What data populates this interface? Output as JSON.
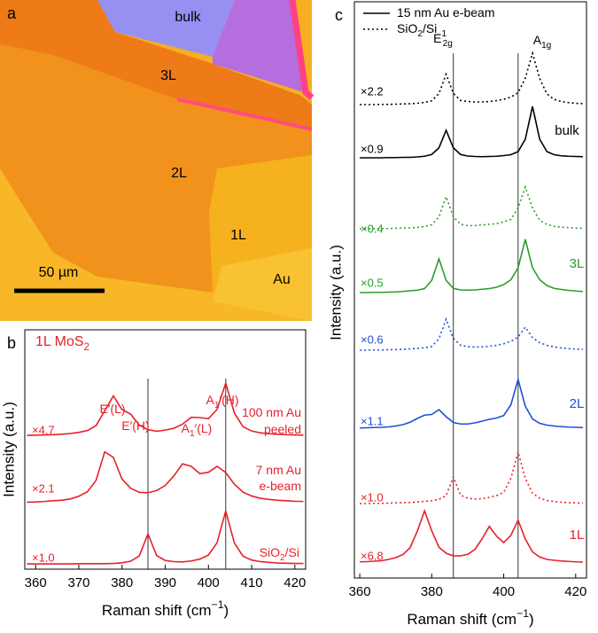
{
  "panel_a": {
    "label": "a",
    "regions": [
      "bulk",
      "3L",
      "2L",
      "1L",
      "Au"
    ],
    "scale_bar": "50 µm"
  },
  "chart_data": [
    {
      "type": "line",
      "panel": "b",
      "title": [
        {
          "t": "1L MoS"
        },
        {
          "t": "2",
          "pos": "sub"
        }
      ],
      "xlabel": [
        {
          "t": "Raman shift (cm"
        },
        {
          "t": "−1",
          "pos": "sup"
        },
        {
          "t": ")"
        }
      ],
      "ylabel": "Intensity (a.u.)",
      "xlim": [
        357.5,
        422.5
      ],
      "xticks": [
        360,
        370,
        380,
        390,
        400,
        410,
        420
      ],
      "ylim": [
        0,
        10.5
      ],
      "vlines": [
        386,
        404
      ],
      "x": [
        358,
        360,
        362,
        364,
        366,
        368,
        370,
        372,
        374,
        376,
        378,
        380,
        382,
        384,
        386,
        388,
        390,
        392,
        394,
        396,
        398,
        400,
        402,
        404,
        406,
        408,
        410,
        412,
        414,
        416,
        418,
        420,
        422
      ],
      "series": [
        {
          "color": "#e8202a",
          "dash": false,
          "scale": "×4.7",
          "label_lines": [
            [
              {
                "t": "100 nm Au"
              }
            ],
            [
              {
                "t": "peeled"
              }
            ]
          ],
          "values": [
            5.87,
            5.88,
            5.89,
            5.9,
            5.92,
            5.95,
            6.0,
            6.08,
            6.3,
            6.95,
            7.6,
            7.0,
            6.8,
            6.32,
            6.12,
            6.05,
            6.1,
            6.18,
            6.36,
            6.66,
            6.65,
            6.6,
            7.01,
            8.16,
            6.85,
            6.25,
            6.06,
            5.98,
            5.94,
            5.92,
            5.9,
            5.89,
            5.88
          ]
        },
        {
          "color": "#e8202a",
          "dash": false,
          "scale": "×2.1",
          "label_lines": [
            [
              {
                "t": "7 nm Au"
              }
            ],
            [
              {
                "t": "e-beam"
              }
            ]
          ],
          "values": [
            2.94,
            2.95,
            2.97,
            3.0,
            3.02,
            3.08,
            3.2,
            3.4,
            3.9,
            5.15,
            4.9,
            3.95,
            3.55,
            3.37,
            3.35,
            3.45,
            3.67,
            4.09,
            4.62,
            4.51,
            4.19,
            4.25,
            4.51,
            4.24,
            3.73,
            3.38,
            3.21,
            3.11,
            3.06,
            3.02,
            3.0,
            2.98,
            2.97
          ]
        },
        {
          "color": "#e8202a",
          "dash": false,
          "scale": "×1.0",
          "label_lines": [
            [
              {
                "t": "SiO"
              },
              {
                "t": "2",
                "pos": "sub"
              },
              {
                "t": "/Si"
              }
            ]
          ],
          "values": [
            0.23,
            0.23,
            0.23,
            0.23,
            0.23,
            0.23,
            0.24,
            0.24,
            0.24,
            0.24,
            0.25,
            0.28,
            0.35,
            0.58,
            1.55,
            0.6,
            0.38,
            0.33,
            0.32,
            0.36,
            0.44,
            0.62,
            1.16,
            2.55,
            1.15,
            0.57,
            0.4,
            0.33,
            0.3,
            0.27,
            0.26,
            0.25,
            0.25
          ]
        }
      ],
      "peak_labels": [
        [
          {
            "t": "E′(L)"
          }
        ],
        [
          {
            "t": "E′(H)"
          }
        ],
        [
          {
            "t": "A"
          },
          {
            "t": "1",
            "pos": "sub"
          },
          {
            "t": "′(L)"
          }
        ],
        [
          {
            "t": "A"
          },
          {
            "t": "1",
            "pos": "sub"
          },
          {
            "t": "′(H)"
          }
        ]
      ]
    },
    {
      "type": "line",
      "panel": "c",
      "xlabel": [
        {
          "t": "Raman shift (cm"
        },
        {
          "t": "−1",
          "pos": "sup"
        },
        {
          "t": ")"
        }
      ],
      "ylabel": "Intensity (a.u.)",
      "xlim": [
        358.5,
        423
      ],
      "xticks": [
        360,
        380,
        400,
        420
      ],
      "ylim": [
        0,
        26
      ],
      "vlines": [
        386,
        404
      ],
      "legend": [
        {
          "parts": [
            {
              "t": "15 nm Au e-beam"
            }
          ],
          "dash": false,
          "color": "#000000"
        },
        {
          "parts": [
            {
              "t": "SiO"
            },
            {
              "t": "2",
              "pos": "sub"
            },
            {
              "t": "/Si"
            }
          ],
          "dash": true,
          "color": "#000000"
        }
      ],
      "x": [
        360,
        362,
        364,
        366,
        368,
        370,
        372,
        374,
        376,
        378,
        380,
        382,
        384,
        386,
        388,
        390,
        392,
        394,
        396,
        398,
        400,
        402,
        404,
        406,
        408,
        410,
        412,
        414,
        416,
        418,
        420,
        422
      ],
      "series": [
        {
          "color": "#000000",
          "dash": true,
          "scale": "×2.2",
          "values": [
            21.36,
            21.36,
            21.36,
            21.37,
            21.37,
            21.38,
            21.39,
            21.4,
            21.42,
            21.46,
            21.53,
            21.86,
            22.73,
            21.87,
            21.55,
            21.5,
            21.48,
            21.48,
            21.5,
            21.54,
            21.6,
            21.7,
            21.9,
            22.55,
            23.68,
            22.54,
            21.84,
            21.6,
            21.5,
            21.45,
            21.42,
            21.4
          ]
        },
        {
          "color": "#000000",
          "dash": false,
          "scale": "×0.9",
          "values": [
            18.96,
            18.96,
            18.96,
            18.96,
            18.97,
            18.97,
            18.98,
            18.98,
            19.0,
            19.03,
            19.11,
            19.41,
            20.2,
            19.41,
            19.11,
            19.04,
            19.02,
            19.01,
            19.02,
            19.03,
            19.06,
            19.1,
            19.24,
            19.8,
            21.28,
            19.8,
            19.24,
            19.1,
            19.05,
            19.03,
            19.02,
            19.01
          ]
        },
        {
          "color": "#2a9d2a",
          "dash": true,
          "scale": "×0.4",
          "values": [
            15.76,
            15.76,
            15.76,
            15.77,
            15.77,
            15.78,
            15.79,
            15.8,
            15.82,
            15.86,
            15.94,
            16.29,
            17.21,
            16.3,
            15.96,
            15.9,
            15.9,
            15.93,
            15.96,
            15.99,
            16.07,
            16.18,
            16.7,
            17.64,
            16.7,
            16.14,
            15.95,
            15.87,
            15.83,
            15.81,
            15.79,
            15.78
          ]
        },
        {
          "color": "#2a9d2a",
          "dash": false,
          "scale": "×0.5",
          "values": [
            12.88,
            12.88,
            12.89,
            12.89,
            12.9,
            12.91,
            12.93,
            12.96,
            12.99,
            13.06,
            13.43,
            14.4,
            13.43,
            13.07,
            13.0,
            12.99,
            13.0,
            13.03,
            13.06,
            13.12,
            13.24,
            13.46,
            14.0,
            15.28,
            14.0,
            13.46,
            13.2,
            13.07,
            13.02,
            12.98,
            12.95,
            12.93
          ]
        },
        {
          "color": "#1f4fd6",
          "dash": true,
          "scale": "×0.6",
          "values": [
            10.28,
            10.28,
            10.29,
            10.29,
            10.3,
            10.31,
            10.32,
            10.34,
            10.36,
            10.39,
            10.45,
            10.79,
            11.68,
            10.82,
            10.5,
            10.44,
            10.42,
            10.43,
            10.46,
            10.5,
            10.57,
            10.68,
            10.87,
            11.32,
            10.85,
            10.62,
            10.5,
            10.43,
            10.38,
            10.35,
            10.33,
            10.32
          ]
        },
        {
          "color": "#1f4fd6",
          "dash": false,
          "scale": "×1.1",
          "values": [
            6.77,
            6.78,
            6.79,
            6.8,
            6.82,
            6.86,
            6.92,
            7.03,
            7.2,
            7.35,
            7.38,
            7.6,
            7.28,
            7.02,
            6.95,
            6.95,
            7.0,
            7.08,
            7.16,
            7.22,
            7.33,
            7.82,
            8.96,
            7.75,
            7.18,
            6.98,
            6.9,
            6.86,
            6.83,
            6.81,
            6.8,
            6.79
          ]
        },
        {
          "color": "#e8202a",
          "dash": true,
          "scale": "×1.0",
          "values": [
            3.36,
            3.36,
            3.37,
            3.37,
            3.38,
            3.39,
            3.4,
            3.41,
            3.43,
            3.46,
            3.49,
            3.55,
            3.72,
            4.56,
            3.74,
            3.6,
            3.56,
            3.58,
            3.64,
            3.72,
            3.87,
            4.5,
            5.68,
            4.5,
            3.83,
            3.6,
            3.5,
            3.45,
            3.42,
            3.4,
            3.39,
            3.38
          ]
        },
        {
          "color": "#e8202a",
          "dash": false,
          "scale": "×6.8",
          "values": [
            0.73,
            0.74,
            0.76,
            0.78,
            0.84,
            0.92,
            1.06,
            1.37,
            2.12,
            3.03,
            2.13,
            1.39,
            1.12,
            1.0,
            1.0,
            1.07,
            1.29,
            1.77,
            2.33,
            1.89,
            1.6,
            1.93,
            2.61,
            1.76,
            1.18,
            0.95,
            0.84,
            0.8,
            0.77,
            0.75,
            0.73,
            0.72
          ]
        }
      ],
      "group_labels": [
        {
          "text": "bulk",
          "color": "#000000"
        },
        {
          "text": "3L",
          "color": "#2a9d2a"
        },
        {
          "text": "2L",
          "color": "#1f4fd6"
        },
        {
          "text": "1L",
          "color": "#e8202a"
        }
      ],
      "peak_labels": [
        [
          {
            "t": "E"
          },
          {
            "t": "1",
            "pos": "sup"
          },
          {
            "t": "2g",
            "pos": "sub"
          }
        ],
        [
          {
            "t": "A"
          },
          {
            "t": "1g",
            "pos": "sub"
          }
        ]
      ]
    }
  ]
}
